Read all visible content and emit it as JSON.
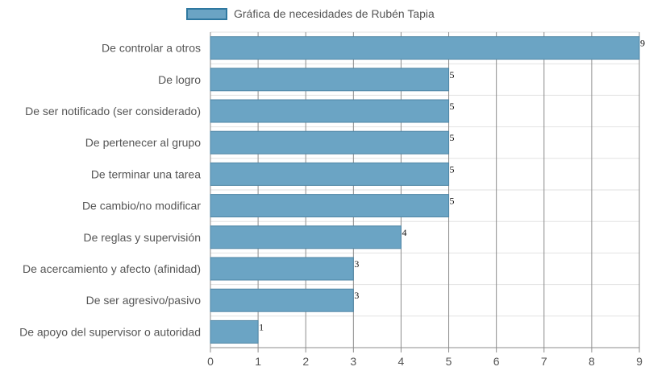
{
  "chart_data": {
    "type": "bar",
    "orientation": "horizontal",
    "categories": [
      "De controlar a otros",
      "De logro",
      "De ser notificado (ser considerado)",
      "De pertenecer al grupo",
      "De terminar una tarea",
      "De cambio/no modificar",
      "De reglas y supervisión",
      "De acercamiento y afecto (afinidad)",
      "De ser agresivo/pasivo",
      "De apoyo del supervisor o autoridad"
    ],
    "series": [
      {
        "name": "Gráfica de necesidades de Rubén Tapia",
        "values": [
          9,
          5,
          5,
          5,
          5,
          5,
          4,
          3,
          3,
          1
        ],
        "color": "#6ba4c4",
        "border_color": "#2f78a0"
      }
    ],
    "x_ticks": [
      0,
      1,
      2,
      3,
      4,
      5,
      6,
      7,
      8,
      9
    ],
    "xlim": [
      0,
      9
    ],
    "grid": true,
    "legend_position": "top-left",
    "data_labels": true
  }
}
